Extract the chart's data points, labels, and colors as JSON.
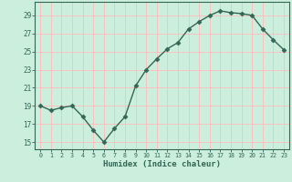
{
  "x": [
    0,
    1,
    2,
    3,
    4,
    5,
    6,
    7,
    8,
    9,
    10,
    11,
    12,
    13,
    14,
    15,
    16,
    17,
    18,
    19,
    20,
    21,
    22,
    23
  ],
  "y": [
    19.0,
    18.5,
    18.8,
    19.0,
    17.8,
    16.3,
    15.0,
    16.5,
    17.8,
    21.2,
    23.0,
    24.2,
    25.3,
    26.0,
    27.5,
    28.3,
    29.0,
    29.5,
    29.3,
    29.2,
    29.0,
    27.5,
    26.3,
    25.2
  ],
  "xlabel": "Humidex (Indice chaleur)",
  "bg_color": "#cceedd",
  "line_color": "#336655",
  "marker": "D",
  "marker_size": 2.5,
  "linewidth": 1.0,
  "grid_color": "#ffbbbb",
  "yticks": [
    15,
    17,
    19,
    21,
    23,
    25,
    27,
    29
  ],
  "xticks": [
    0,
    1,
    2,
    3,
    4,
    5,
    6,
    7,
    8,
    9,
    10,
    11,
    12,
    13,
    14,
    15,
    16,
    17,
    18,
    19,
    20,
    21,
    22,
    23
  ],
  "ylim": [
    14.2,
    30.5
  ],
  "xlim": [
    -0.5,
    23.5
  ]
}
